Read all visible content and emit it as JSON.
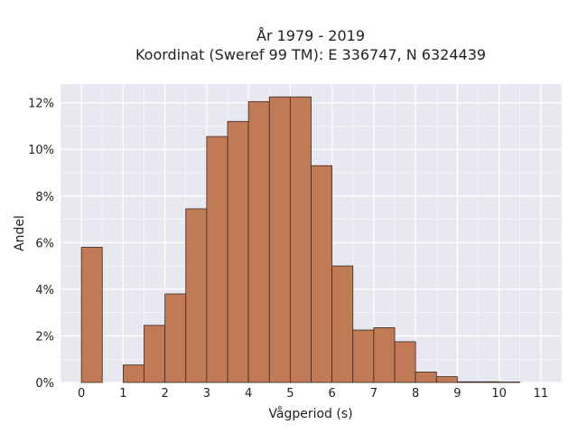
{
  "chart_data": {
    "type": "bar",
    "title_line1": "År 1979 - 2019",
    "title_line2": "Koordinat (Sweref 99 TM): E 336747, N 6324439",
    "xlabel": "Vågperiod (s)",
    "ylabel": "Andel",
    "xlim": [
      -0.5,
      11.5
    ],
    "ylim": [
      0,
      12.8
    ],
    "x_ticks": [
      "0",
      "1",
      "2",
      "3",
      "4",
      "5",
      "6",
      "7",
      "8",
      "9",
      "10",
      "11"
    ],
    "y_ticks": [
      "0%",
      "2%",
      "4%",
      "6%",
      "8%",
      "10%",
      "12%"
    ],
    "bin_width": 0.5,
    "bins": [
      {
        "x0": 0.0,
        "value": 5.8
      },
      {
        "x0": 1.0,
        "value": 0.75
      },
      {
        "x0": 1.5,
        "value": 2.45
      },
      {
        "x0": 2.0,
        "value": 3.8
      },
      {
        "x0": 2.5,
        "value": 7.45
      },
      {
        "x0": 3.0,
        "value": 10.55
      },
      {
        "x0": 3.5,
        "value": 11.2
      },
      {
        "x0": 4.0,
        "value": 12.05
      },
      {
        "x0": 4.5,
        "value": 12.25
      },
      {
        "x0": 5.0,
        "value": 12.25
      },
      {
        "x0": 5.5,
        "value": 9.3
      },
      {
        "x0": 6.0,
        "value": 5.0
      },
      {
        "x0": 6.5,
        "value": 2.25
      },
      {
        "x0": 7.0,
        "value": 2.35
      },
      {
        "x0": 7.5,
        "value": 1.75
      },
      {
        "x0": 8.0,
        "value": 0.45
      },
      {
        "x0": 8.5,
        "value": 0.25
      },
      {
        "x0": 9.0,
        "value": 0.03
      },
      {
        "x0": 9.5,
        "value": 0.03
      },
      {
        "x0": 10.0,
        "value": 0.02
      }
    ],
    "colors": {
      "bar_fill": "#c07a55",
      "bar_edge": "#3a2a20",
      "plot_bg": "#e8e8f0",
      "grid": "#ffffff"
    },
    "grid": true
  }
}
